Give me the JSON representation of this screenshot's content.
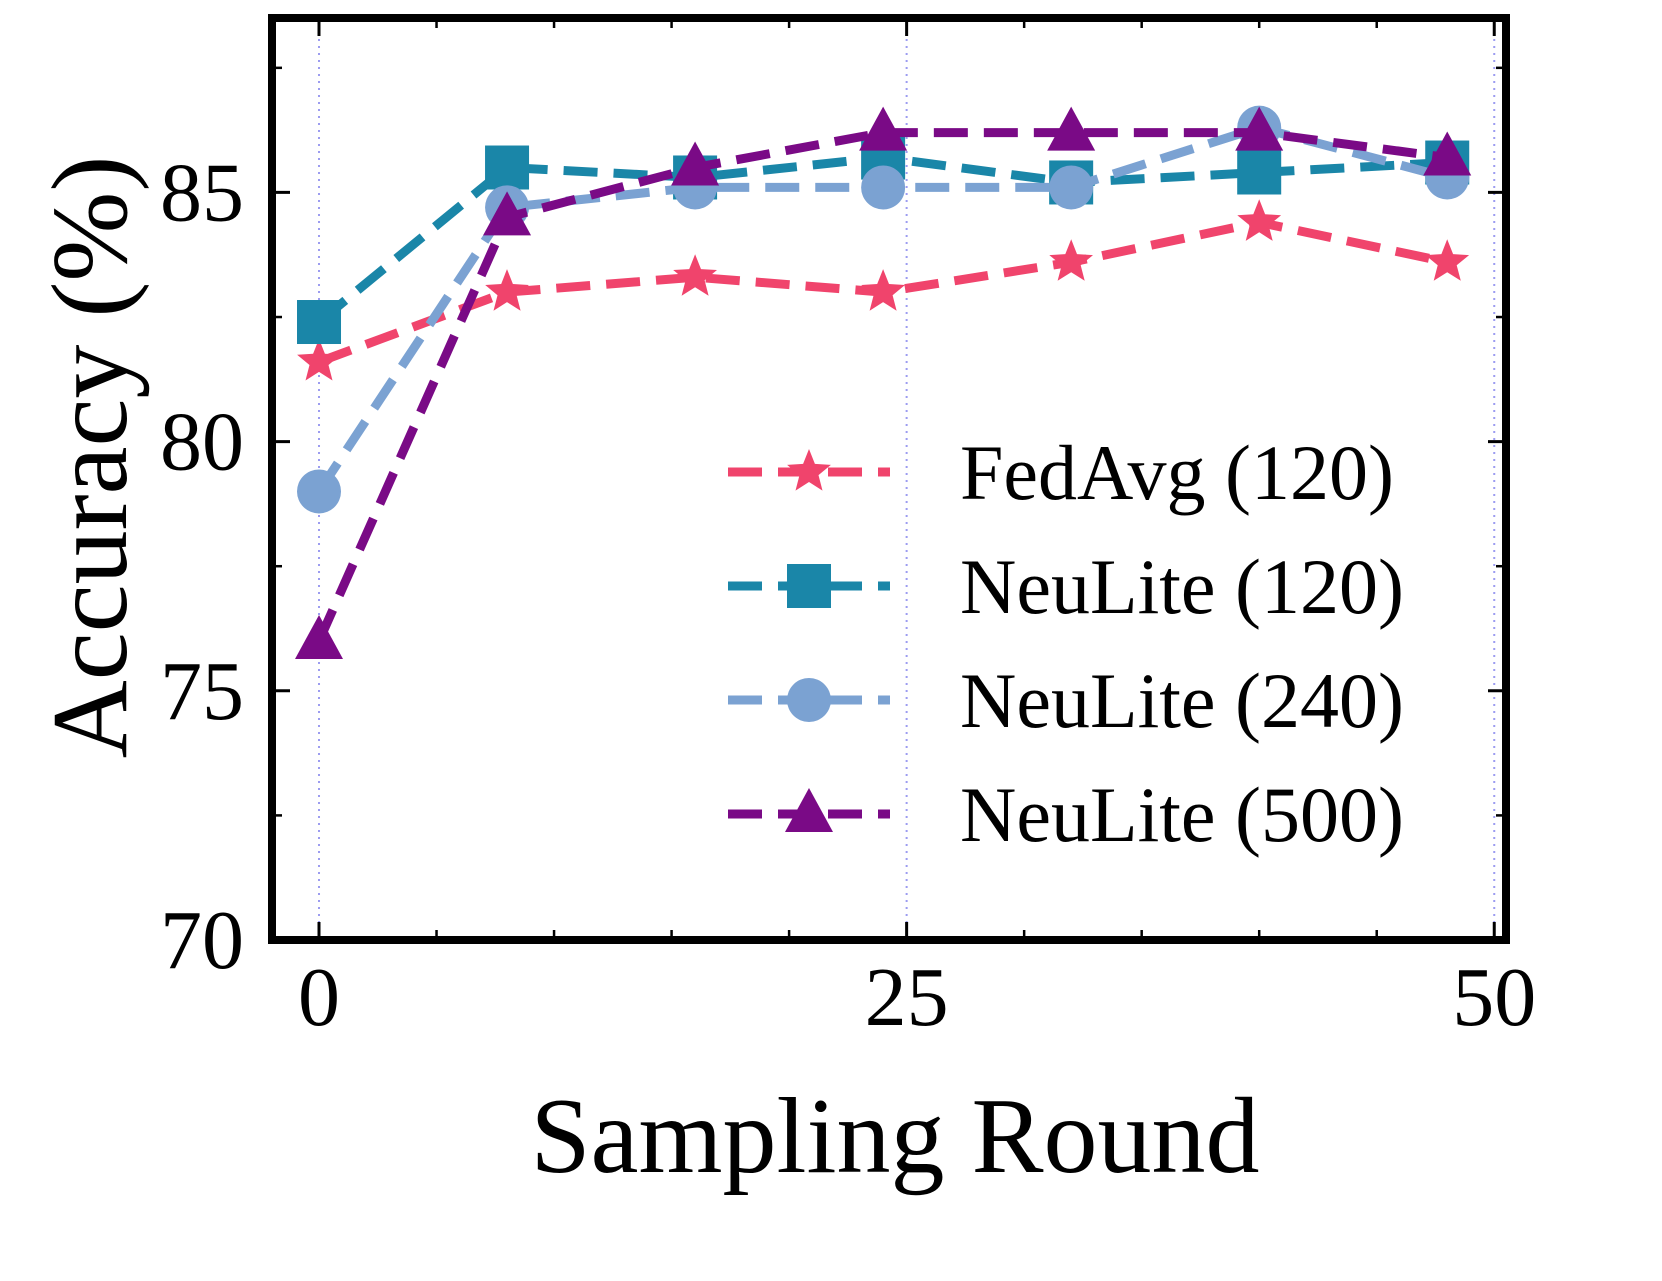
{
  "chart_data": {
    "type": "line",
    "title": "",
    "xlabel": "Sampling Round",
    "ylabel": "Accuracy (%)",
    "xlim": [
      -2,
      50.5
    ],
    "ylim": [
      70,
      88.5
    ],
    "xticks": [
      0,
      25,
      50
    ],
    "yticks": [
      70,
      75,
      80,
      85
    ],
    "x_minor_step": 5,
    "y_minor_step": 2.5,
    "x_gridlines": [
      0,
      25,
      50
    ],
    "legend_position": "lower-right",
    "series": [
      {
        "name": "FedAvg (120)",
        "color": "#f0446c",
        "marker": "star",
        "x": [
          0,
          8,
          16,
          24,
          32,
          40,
          48
        ],
        "values": [
          81.6,
          83.0,
          83.3,
          83.0,
          83.6,
          84.4,
          83.6
        ]
      },
      {
        "name": "NeuLite (120)",
        "color": "#1a86a8",
        "marker": "square",
        "x": [
          0,
          8,
          16,
          24,
          32,
          40,
          48
        ],
        "values": [
          82.4,
          85.5,
          85.3,
          85.7,
          85.2,
          85.4,
          85.6
        ]
      },
      {
        "name": "NeuLite (240)",
        "color": "#7ba2d2",
        "marker": "circle",
        "x": [
          0,
          8,
          16,
          24,
          32,
          40,
          48
        ],
        "values": [
          79.0,
          84.7,
          85.1,
          85.1,
          85.1,
          86.3,
          85.3
        ]
      },
      {
        "name": "NeuLite (500)",
        "color": "#7a0a86",
        "marker": "triangle",
        "x": [
          0,
          8,
          16,
          24,
          32,
          40,
          48
        ],
        "values": [
          76.0,
          84.5,
          85.5,
          86.2,
          86.2,
          86.2,
          85.7
        ]
      }
    ]
  }
}
